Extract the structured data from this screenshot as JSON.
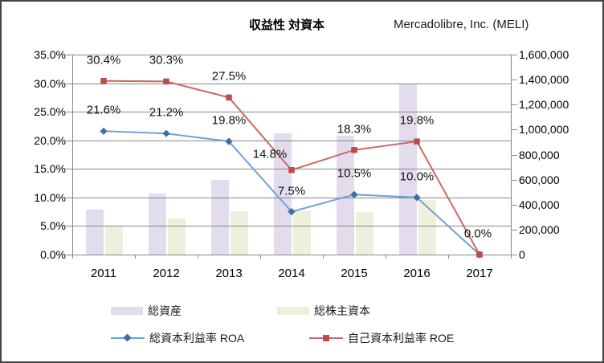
{
  "chart_data": {
    "type": "combo-bar-line",
    "title": "収益性 対資本",
    "subtitle": "Mercadolibre, Inc. (MELI)",
    "categories": [
      "2011",
      "2012",
      "2013",
      "2014",
      "2015",
      "2016",
      "2017"
    ],
    "bar_series": [
      {
        "name": "総資産",
        "axis": "right",
        "color": "#E2DCEC",
        "values": [
          360000,
          490000,
          595000,
          970000,
          950000,
          1365000,
          null
        ]
      },
      {
        "name": "総株主資本",
        "axis": "right",
        "color": "#ECF0DD",
        "values": [
          225000,
          290000,
          350000,
          345000,
          340000,
          435000,
          null
        ]
      }
    ],
    "line_series": [
      {
        "name": "総資本利益率  ROA",
        "axis": "left",
        "marker": "diamond",
        "line_color": "#74A1D3",
        "marker_color": "#3E6DA8",
        "values": [
          21.6,
          21.2,
          19.8,
          7.5,
          10.5,
          10.0,
          0.0
        ],
        "labels": [
          "21.6%",
          "21.2%",
          "19.8%",
          "7.5%",
          "10.5%",
          "10.0%",
          ""
        ]
      },
      {
        "name": "自己資本利益率  ROE",
        "axis": "left",
        "marker": "square",
        "line_color": "#C96A66",
        "marker_color": "#BE4B48",
        "values": [
          30.4,
          30.3,
          27.5,
          14.8,
          18.3,
          19.8,
          0.0
        ],
        "labels": [
          "30.4%",
          "30.3%",
          "27.5%",
          "14.8%",
          "18.3%",
          "19.8%",
          "0.0%"
        ]
      }
    ],
    "left_axis": {
      "min": 0,
      "max": 35,
      "step": 5,
      "ticks": [
        "0.0%",
        "5.0%",
        "10.0%",
        "15.0%",
        "20.0%",
        "25.0%",
        "30.0%",
        "35.0%"
      ]
    },
    "right_axis": {
      "min": 0,
      "max": 1600000,
      "step": 200000,
      "ticks": [
        "0",
        "200,000",
        "400,000",
        "600,000",
        "800,000",
        "1,000,000",
        "1,200,000",
        "1,400,000",
        "1,600,000"
      ]
    },
    "grid": true,
    "legend_position": "bottom",
    "colors": {
      "gridline": "#898989",
      "text": "#000000"
    }
  }
}
